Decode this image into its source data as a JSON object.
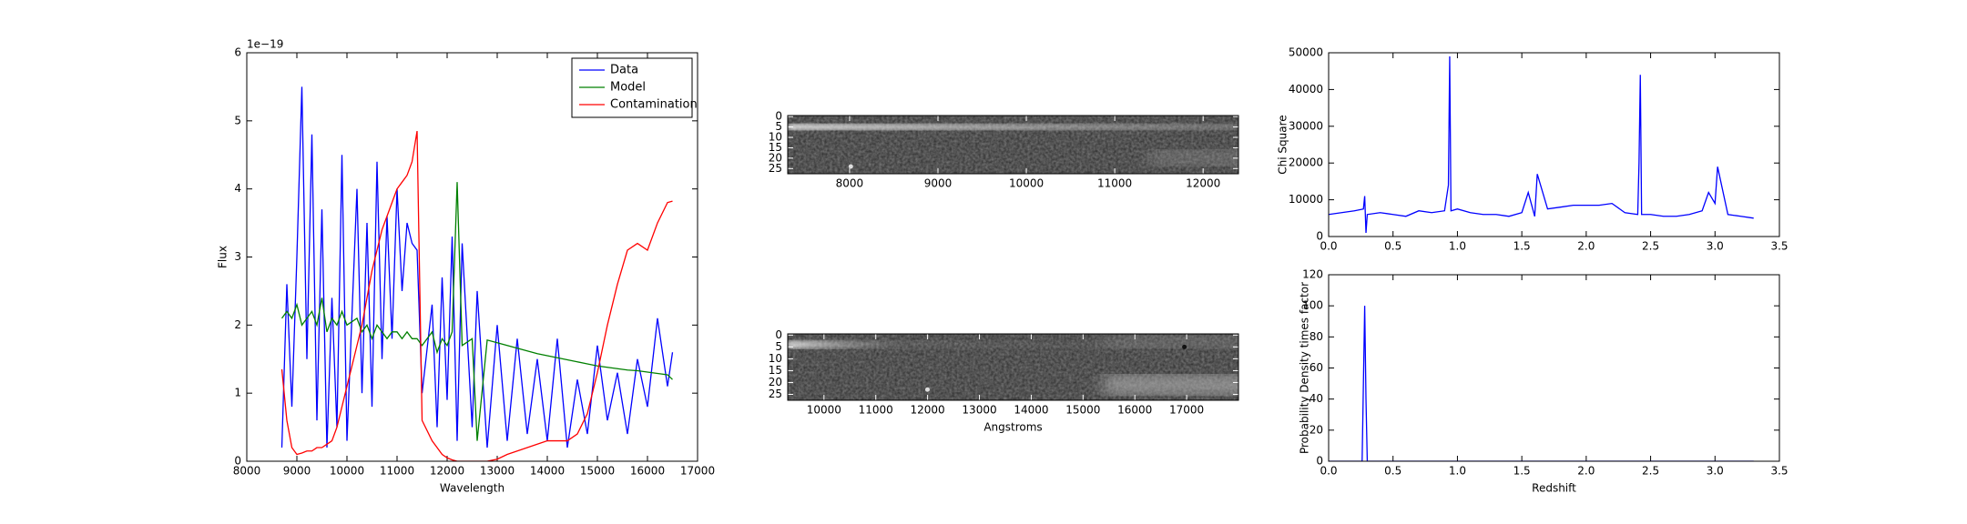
{
  "chart_data": [
    {
      "type": "line",
      "x_label": "Wavelength",
      "y_label": "Flux",
      "y_offset_label": "1e−19",
      "x": [
        8700,
        8800,
        8900,
        9000,
        9100,
        9200,
        9300,
        9400,
        9500,
        9600,
        9700,
        9800,
        9900,
        10000,
        10200,
        10300,
        10400,
        10500,
        10600,
        10700,
        10800,
        10900,
        11000,
        11100,
        11200,
        11300,
        11400,
        11500,
        11700,
        11800,
        11900,
        12000,
        12100,
        12200,
        12300,
        12500,
        12600,
        12800,
        13000,
        13200,
        13400,
        13600,
        13800,
        14000,
        14200,
        14400,
        14600,
        14800,
        15000,
        15200,
        15400,
        15600,
        15800,
        16000,
        16200,
        16400,
        16500
      ],
      "series": [
        {
          "name": "Data",
          "color": "#0000ff",
          "values": [
            0.2,
            2.6,
            0.8,
            3.0,
            5.5,
            1.5,
            4.8,
            0.6,
            3.7,
            0.2,
            2.4,
            0.5,
            4.5,
            0.3,
            4.0,
            1.0,
            3.5,
            0.8,
            4.4,
            1.5,
            3.6,
            1.8,
            4.0,
            2.5,
            3.5,
            3.2,
            3.1,
            1.0,
            2.3,
            0.5,
            2.7,
            0.9,
            3.3,
            0.3,
            3.2,
            0.5,
            2.5,
            0.2,
            2.0,
            0.3,
            1.8,
            0.4,
            1.5,
            0.3,
            1.8,
            0.2,
            1.2,
            0.4,
            1.7,
            0.6,
            1.3,
            0.4,
            1.5,
            0.8,
            2.1,
            1.1,
            1.6
          ]
        },
        {
          "name": "Model",
          "color": "#008000",
          "values": [
            2.1,
            2.2,
            2.1,
            2.3,
            2.0,
            2.1,
            2.2,
            2.0,
            2.4,
            1.9,
            2.1,
            2.0,
            2.2,
            2.0,
            2.1,
            1.9,
            2.0,
            1.8,
            2.0,
            1.9,
            1.8,
            1.9,
            1.9,
            1.8,
            1.9,
            1.8,
            1.8,
            1.7,
            1.9,
            1.6,
            1.8,
            1.7,
            1.9,
            4.1,
            1.7,
            1.8,
            0.3,
            1.78,
            1.74,
            1.7,
            1.66,
            1.62,
            1.58,
            1.55,
            1.52,
            1.49,
            1.46,
            1.43,
            1.4,
            1.38,
            1.36,
            1.34,
            1.33,
            1.31,
            1.29,
            1.27,
            1.2
          ]
        },
        {
          "name": "Contamination",
          "color": "#ff0000",
          "values": [
            1.35,
            0.6,
            0.2,
            0.1,
            0.12,
            0.15,
            0.15,
            0.2,
            0.2,
            0.25,
            0.3,
            0.5,
            0.8,
            1.1,
            1.7,
            2.0,
            2.4,
            2.8,
            3.1,
            3.4,
            3.6,
            3.8,
            4.0,
            4.1,
            4.2,
            4.4,
            4.85,
            0.6,
            0.3,
            0.2,
            0.1,
            0.05,
            0.02,
            0,
            0,
            0,
            0,
            0,
            0.03,
            0.1,
            0.15,
            0.2,
            0.25,
            0.3,
            0.3,
            0.3,
            0.4,
            0.7,
            1.3,
            2.0,
            2.6,
            3.1,
            3.2,
            3.1,
            3.5,
            3.8,
            3.82
          ]
        }
      ],
      "xlim": [
        8000,
        17000
      ],
      "xticks": [
        8000,
        9000,
        10000,
        11000,
        12000,
        13000,
        14000,
        15000,
        16000,
        17000
      ],
      "ylim": [
        0,
        6
      ],
      "yticks": [
        0,
        1,
        2,
        3,
        4,
        5,
        6
      ],
      "legend": "upper right"
    },
    {
      "type": "image",
      "xlim": [
        7300,
        12400
      ],
      "xticks": [
        8000,
        9000,
        10000,
        11000,
        12000
      ],
      "ylim": [
        27.5,
        -0.5
      ],
      "yticks": [
        0,
        5,
        10,
        15,
        20,
        25
      ]
    },
    {
      "type": "image",
      "x_label": "Angstroms",
      "xlim": [
        9300,
        18000
      ],
      "xticks": [
        10000,
        11000,
        12000,
        13000,
        14000,
        15000,
        16000,
        17000
      ],
      "ylim": [
        27.5,
        -0.5
      ],
      "yticks": [
        0,
        5,
        10,
        15,
        20,
        25
      ]
    },
    {
      "type": "line",
      "y_label": "Chi Square",
      "x": [
        0,
        0.1,
        0.2,
        0.27,
        0.28,
        0.29,
        0.3,
        0.4,
        0.5,
        0.6,
        0.7,
        0.8,
        0.9,
        0.93,
        0.94,
        0.95,
        1.0,
        1.1,
        1.2,
        1.3,
        1.4,
        1.5,
        1.55,
        1.6,
        1.62,
        1.7,
        1.8,
        1.9,
        2.0,
        2.1,
        2.2,
        2.3,
        2.4,
        2.41,
        2.42,
        2.43,
        2.5,
        2.6,
        2.7,
        2.8,
        2.9,
        2.95,
        3.0,
        3.02,
        3.1,
        3.2,
        3.3
      ],
      "series": [
        {
          "color": "#0000ff",
          "values": [
            6000,
            6500,
            7000,
            7500,
            11000,
            1000,
            6000,
            6500,
            6000,
            5500,
            7000,
            6500,
            7000,
            14000,
            49000,
            7000,
            7500,
            6500,
            6000,
            6000,
            5500,
            6500,
            12000,
            5500,
            17000,
            7500,
            8000,
            8500,
            8500,
            8500,
            9000,
            6500,
            6000,
            20000,
            44000,
            6000,
            6000,
            5500,
            5500,
            6000,
            7000,
            12000,
            9000,
            19000,
            6000,
            5500,
            5000
          ]
        }
      ],
      "xlim": [
        0,
        3.5
      ],
      "xticks": [
        {
          "value": 0,
          "label": "0.0"
        },
        0.5,
        {
          "value": 1,
          "label": "1.0"
        },
        1.5,
        {
          "value": 2,
          "label": "2.0"
        },
        2.5,
        {
          "value": 3,
          "label": "3.0"
        },
        3.5
      ],
      "ylim": [
        0,
        50000
      ],
      "yticks": [
        0,
        10000,
        20000,
        30000,
        40000,
        50000
      ]
    },
    {
      "type": "line",
      "x_label": "Redshift",
      "y_label": "Probability Density times factor",
      "x": [
        0,
        0.26,
        0.27,
        0.28,
        0.29,
        0.3,
        1.0,
        2.0,
        3.3
      ],
      "series": [
        {
          "color": "#0000ff",
          "values": [
            0,
            0,
            50,
            100,
            40,
            0,
            0,
            0,
            0
          ]
        }
      ],
      "xlim": [
        0,
        3.5
      ],
      "xticks": [
        {
          "value": 0,
          "label": "0.0"
        },
        0.5,
        {
          "value": 1,
          "label": "1.0"
        },
        1.5,
        {
          "value": 2,
          "label": "2.0"
        },
        2.5,
        {
          "value": 3,
          "label": "3.0"
        },
        3.5
      ],
      "ylim": [
        0,
        120
      ],
      "yticks": [
        0,
        20,
        40,
        60,
        80,
        100,
        120
      ]
    }
  ]
}
